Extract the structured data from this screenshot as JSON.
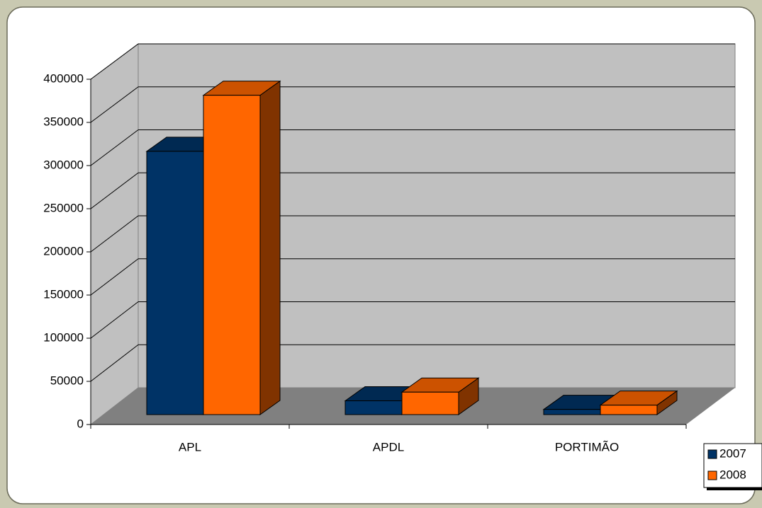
{
  "chart_data": {
    "type": "bar3d",
    "categories": [
      "APL",
      "APDL",
      "PORTIMÃO"
    ],
    "series": [
      {
        "name": "2007",
        "color": "#003366",
        "values": [
          305000,
          16000,
          6000
        ]
      },
      {
        "name": "2008",
        "color": "#ff6600",
        "values": [
          370000,
          26000,
          11000
        ]
      }
    ],
    "ylim": [
      0,
      400000
    ],
    "yticks": [
      0,
      50000,
      100000,
      150000,
      200000,
      250000,
      300000,
      350000,
      400000
    ],
    "grid": true,
    "legend": "bottom-right"
  }
}
